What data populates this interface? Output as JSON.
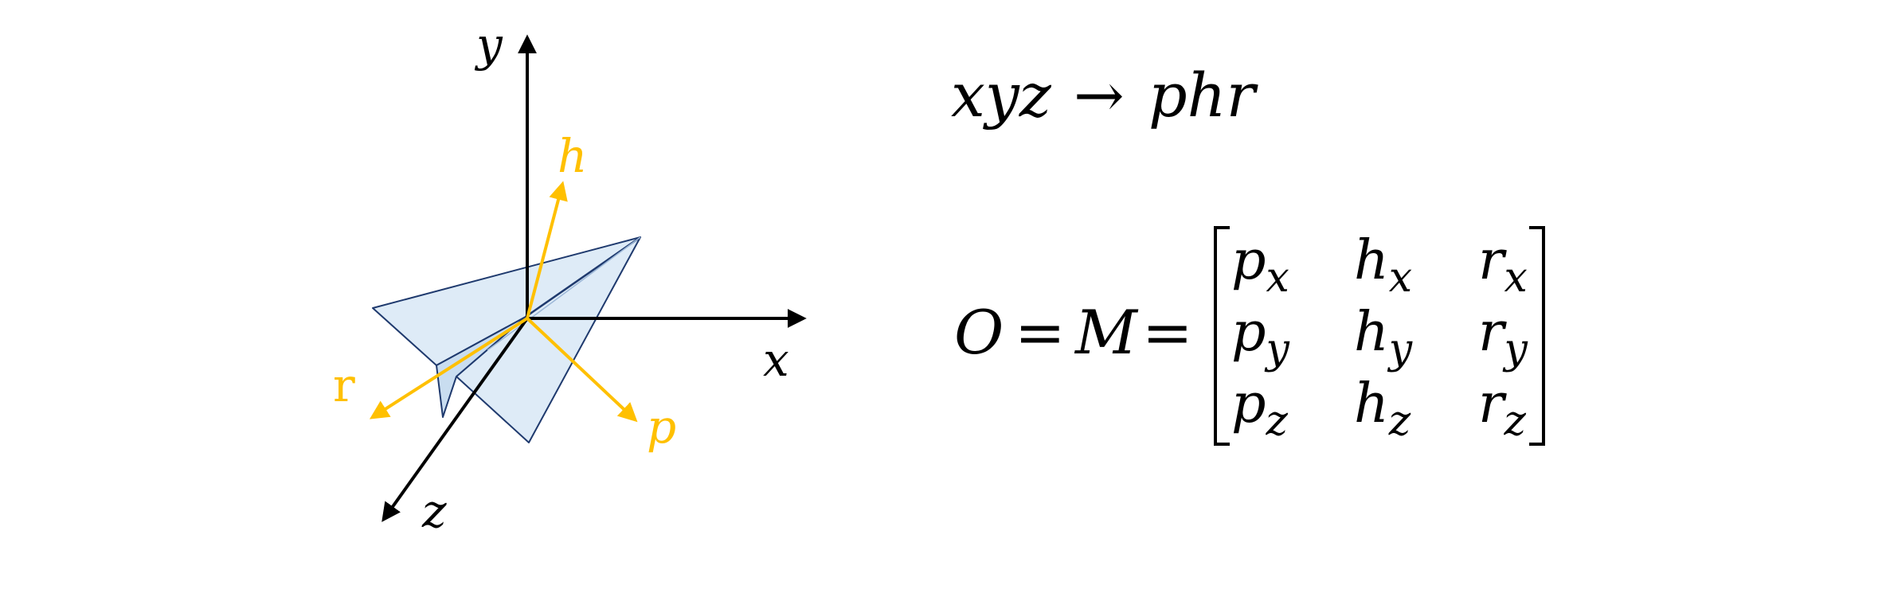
{
  "axes": {
    "x_label": "x",
    "y_label": "y",
    "z_label": "z",
    "color": "#000000"
  },
  "local_axes": {
    "h_label": "h",
    "r_label": "r",
    "p_label": "p",
    "color": "#FFC000"
  },
  "plane": {
    "fill": "#DEEBF7",
    "stroke": "#1F3A6E"
  },
  "mapping": {
    "from": "xyz",
    "arrow": "→",
    "to": "phr"
  },
  "equation": {
    "lhs_o": "O",
    "equals": "=",
    "lhs_m": "M",
    "matrix": [
      [
        {
          "base": "p",
          "sub": "x"
        },
        {
          "base": "h",
          "sub": "x"
        },
        {
          "base": "r",
          "sub": "x"
        }
      ],
      [
        {
          "base": "p",
          "sub": "y"
        },
        {
          "base": "h",
          "sub": "y"
        },
        {
          "base": "r",
          "sub": "y"
        }
      ],
      [
        {
          "base": "p",
          "sub": "z"
        },
        {
          "base": "h",
          "sub": "z"
        },
        {
          "base": "r",
          "sub": "z"
        }
      ]
    ]
  }
}
